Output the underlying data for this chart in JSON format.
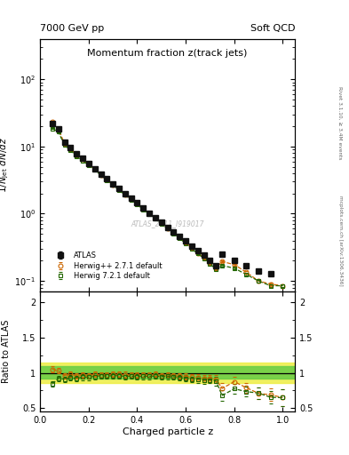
{
  "title_main": "Momentum fraction z(track jets)",
  "header_left": "7000 GeV pp",
  "header_right": "Soft QCD",
  "right_label_top": "Rivet 3.1.10, ≥ 3.4M events",
  "right_label_bottom": "mcplots.cern.ch [arXiv:1306.3436]",
  "watermark": "ATLAS_2011_I919017",
  "xlabel": "Charged particle z",
  "ylabel_main": "1/N_jet dN/dz",
  "ylabel_ratio": "Ratio to ATLAS",
  "atlas_x": [
    0.05,
    0.075,
    0.1,
    0.125,
    0.15,
    0.175,
    0.2,
    0.225,
    0.25,
    0.275,
    0.3,
    0.325,
    0.35,
    0.375,
    0.4,
    0.425,
    0.45,
    0.475,
    0.5,
    0.525,
    0.55,
    0.575,
    0.6,
    0.625,
    0.65,
    0.675,
    0.7,
    0.725,
    0.75,
    0.8,
    0.85,
    0.9,
    0.95
  ],
  "atlas_y": [
    22.0,
    18.0,
    11.5,
    9.5,
    7.8,
    6.6,
    5.6,
    4.7,
    3.9,
    3.3,
    2.75,
    2.35,
    2.0,
    1.7,
    1.45,
    1.22,
    1.03,
    0.88,
    0.75,
    0.63,
    0.54,
    0.46,
    0.39,
    0.33,
    0.28,
    0.24,
    0.2,
    0.17,
    0.25,
    0.2,
    0.17,
    0.14,
    0.13
  ],
  "atlas_yerr": [
    0.8,
    0.6,
    0.4,
    0.35,
    0.3,
    0.25,
    0.2,
    0.17,
    0.14,
    0.12,
    0.1,
    0.08,
    0.07,
    0.06,
    0.05,
    0.04,
    0.035,
    0.03,
    0.025,
    0.022,
    0.018,
    0.015,
    0.013,
    0.011,
    0.009,
    0.008,
    0.007,
    0.006,
    0.008,
    0.007,
    0.006,
    0.005,
    0.005
  ],
  "herwig1_x": [
    0.05,
    0.075,
    0.1,
    0.125,
    0.15,
    0.175,
    0.2,
    0.225,
    0.25,
    0.275,
    0.3,
    0.325,
    0.35,
    0.375,
    0.4,
    0.425,
    0.45,
    0.475,
    0.5,
    0.525,
    0.55,
    0.575,
    0.6,
    0.625,
    0.65,
    0.675,
    0.7,
    0.725,
    0.75,
    0.8,
    0.85,
    0.9,
    0.95,
    1.0
  ],
  "herwig1_y": [
    23.0,
    18.5,
    11.0,
    9.3,
    7.5,
    6.4,
    5.4,
    4.6,
    3.8,
    3.2,
    2.7,
    2.3,
    1.95,
    1.65,
    1.4,
    1.18,
    1.0,
    0.86,
    0.72,
    0.61,
    0.52,
    0.44,
    0.37,
    0.31,
    0.26,
    0.22,
    0.185,
    0.155,
    0.195,
    0.175,
    0.135,
    0.1,
    0.09,
    0.085
  ],
  "herwig1_yerr": [
    0.5,
    0.4,
    0.3,
    0.25,
    0.2,
    0.18,
    0.15,
    0.12,
    0.1,
    0.08,
    0.07,
    0.06,
    0.05,
    0.04,
    0.035,
    0.03,
    0.025,
    0.022,
    0.02,
    0.017,
    0.014,
    0.012,
    0.01,
    0.008,
    0.007,
    0.006,
    0.005,
    0.005,
    0.005,
    0.005,
    0.004,
    0.004,
    0.004,
    0.004
  ],
  "herwig2_x": [
    0.05,
    0.075,
    0.1,
    0.125,
    0.15,
    0.175,
    0.2,
    0.225,
    0.25,
    0.275,
    0.3,
    0.325,
    0.35,
    0.375,
    0.4,
    0.425,
    0.45,
    0.475,
    0.5,
    0.525,
    0.55,
    0.575,
    0.6,
    0.625,
    0.65,
    0.675,
    0.7,
    0.725,
    0.75,
    0.8,
    0.85,
    0.9,
    0.95,
    1.0
  ],
  "herwig2_y": [
    18.5,
    16.5,
    10.5,
    8.8,
    7.2,
    6.2,
    5.25,
    4.45,
    3.75,
    3.15,
    2.65,
    2.25,
    1.9,
    1.62,
    1.37,
    1.16,
    0.98,
    0.84,
    0.71,
    0.6,
    0.51,
    0.43,
    0.36,
    0.3,
    0.255,
    0.215,
    0.18,
    0.15,
    0.17,
    0.155,
    0.125,
    0.1,
    0.085,
    0.085
  ],
  "herwig2_yerr": [
    0.5,
    0.4,
    0.3,
    0.25,
    0.2,
    0.18,
    0.15,
    0.12,
    0.1,
    0.08,
    0.07,
    0.06,
    0.05,
    0.04,
    0.035,
    0.03,
    0.025,
    0.022,
    0.02,
    0.017,
    0.014,
    0.012,
    0.01,
    0.008,
    0.007,
    0.006,
    0.005,
    0.005,
    0.005,
    0.005,
    0.004,
    0.004,
    0.004,
    0.004
  ],
  "atlas_color": "#111111",
  "herwig1_color": "#cc6600",
  "herwig2_color": "#226600",
  "ratio_herwig1_x": [
    0.05,
    0.075,
    0.1,
    0.125,
    0.15,
    0.175,
    0.2,
    0.225,
    0.25,
    0.275,
    0.3,
    0.325,
    0.35,
    0.375,
    0.4,
    0.425,
    0.45,
    0.475,
    0.5,
    0.525,
    0.55,
    0.575,
    0.6,
    0.625,
    0.65,
    0.675,
    0.7,
    0.725,
    0.75,
    0.8,
    0.85,
    0.9,
    0.95,
    1.0
  ],
  "ratio_herwig1_y": [
    1.05,
    1.03,
    0.96,
    0.98,
    0.96,
    0.97,
    0.96,
    0.98,
    0.97,
    0.97,
    0.98,
    0.98,
    0.975,
    0.97,
    0.97,
    0.97,
    0.97,
    0.98,
    0.96,
    0.97,
    0.96,
    0.96,
    0.95,
    0.94,
    0.93,
    0.92,
    0.925,
    0.91,
    0.78,
    0.875,
    0.79,
    0.71,
    0.69,
    0.65
  ],
  "ratio_herwig2_x": [
    0.05,
    0.075,
    0.1,
    0.125,
    0.15,
    0.175,
    0.2,
    0.225,
    0.25,
    0.275,
    0.3,
    0.325,
    0.35,
    0.375,
    0.4,
    0.425,
    0.45,
    0.475,
    0.5,
    0.525,
    0.55,
    0.575,
    0.6,
    0.625,
    0.65,
    0.675,
    0.7,
    0.725,
    0.75,
    0.8,
    0.85,
    0.9,
    0.95,
    1.0
  ],
  "ratio_herwig2_y": [
    0.84,
    0.92,
    0.91,
    0.93,
    0.92,
    0.94,
    0.94,
    0.95,
    0.96,
    0.955,
    0.96,
    0.96,
    0.95,
    0.953,
    0.945,
    0.951,
    0.951,
    0.955,
    0.947,
    0.952,
    0.944,
    0.935,
    0.923,
    0.909,
    0.911,
    0.896,
    0.9,
    0.882,
    0.68,
    0.775,
    0.735,
    0.714,
    0.654,
    0.65
  ],
  "ratio_herwig1_err": [
    0.04,
    0.04,
    0.04,
    0.04,
    0.04,
    0.04,
    0.04,
    0.04,
    0.04,
    0.04,
    0.04,
    0.04,
    0.04,
    0.04,
    0.04,
    0.04,
    0.04,
    0.04,
    0.04,
    0.04,
    0.04,
    0.04,
    0.04,
    0.04,
    0.05,
    0.05,
    0.05,
    0.06,
    0.08,
    0.07,
    0.07,
    0.08,
    0.09,
    0.12
  ],
  "ratio_herwig2_err": [
    0.04,
    0.04,
    0.04,
    0.04,
    0.04,
    0.04,
    0.04,
    0.04,
    0.04,
    0.04,
    0.04,
    0.04,
    0.04,
    0.04,
    0.04,
    0.04,
    0.04,
    0.04,
    0.04,
    0.04,
    0.04,
    0.04,
    0.04,
    0.04,
    0.05,
    0.05,
    0.05,
    0.06,
    0.08,
    0.07,
    0.07,
    0.08,
    0.09,
    0.12
  ],
  "band_yellow_lo": 0.86,
  "band_yellow_hi": 1.14,
  "band_green_lo": 0.92,
  "band_green_hi": 1.1,
  "band1_color": "#eeee44",
  "band2_color": "#66cc44",
  "ylim_main": [
    0.07,
    400
  ],
  "ylim_ratio": [
    0.45,
    2.15
  ],
  "xlim": [
    0.0,
    1.05
  ]
}
